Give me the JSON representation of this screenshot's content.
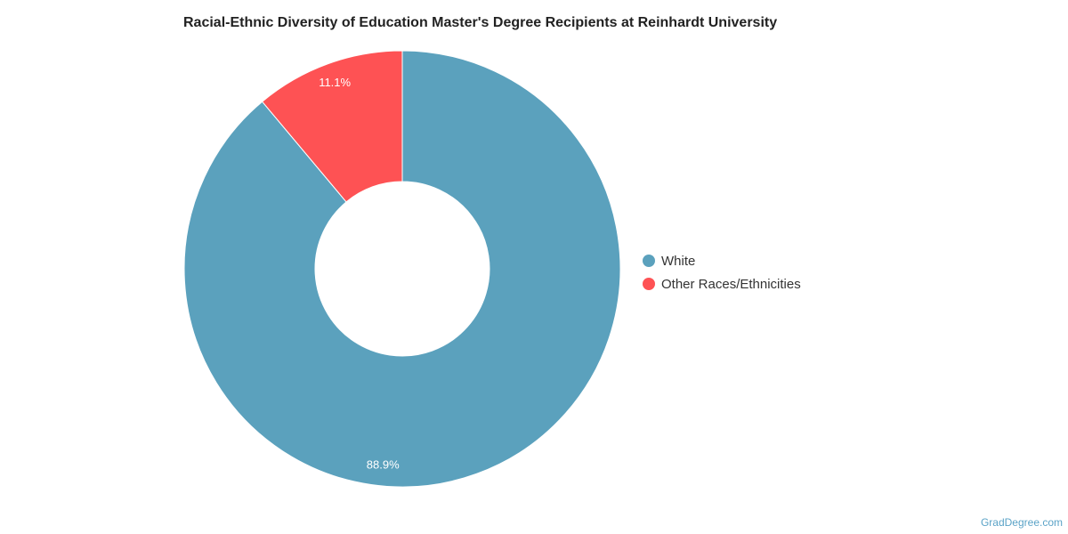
{
  "chart_data": {
    "type": "pie",
    "title": "Racial-Ethnic Diversity of Education Master's Degree Recipients at Reinhardt University",
    "donut": true,
    "slices": [
      {
        "label": "White",
        "value": 88.9,
        "display": "88.9%",
        "color": "#5ba1bd"
      },
      {
        "label": "Other Races/Ethnicities",
        "value": 11.1,
        "display": "11.1%",
        "color": "#fe5254"
      }
    ],
    "legend_position": "right"
  },
  "watermark": "GradDegree.com"
}
